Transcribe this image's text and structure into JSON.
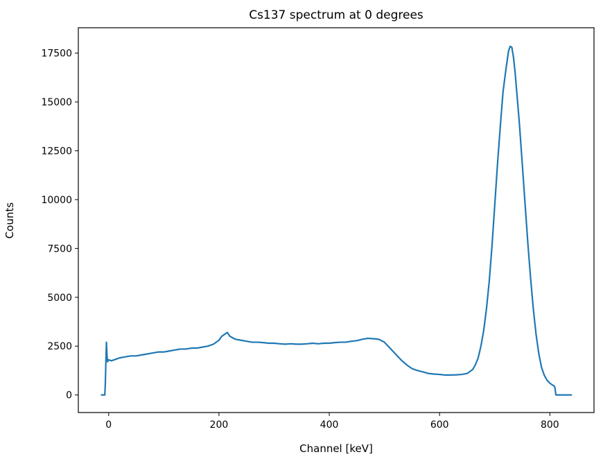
{
  "chart_data": {
    "type": "line",
    "title": "Cs137 spectrum at 0 degrees",
    "xlabel": "Channel [keV]",
    "ylabel": "Counts",
    "xlim": [
      -55,
      880
    ],
    "ylim": [
      -900,
      18800
    ],
    "xticks": [
      0,
      200,
      400,
      600,
      800
    ],
    "xtick_labels": [
      "0",
      "200",
      "400",
      "600",
      "800"
    ],
    "yticks": [
      0,
      2500,
      5000,
      7500,
      10000,
      12500,
      15000,
      17500
    ],
    "ytick_labels": [
      "0",
      "2500",
      "5000",
      "7500",
      "10000",
      "12500",
      "15000",
      "17500"
    ],
    "grid": false,
    "legend": "none",
    "line_color": "#1f77b4",
    "series": [
      {
        "x": [
          -14,
          -8,
          -7,
          -6,
          -5,
          -4,
          -3,
          -2,
          0,
          5,
          10,
          15,
          20,
          30,
          40,
          50,
          60,
          70,
          80,
          90,
          100,
          110,
          120,
          130,
          140,
          150,
          160,
          170,
          180,
          190,
          200,
          205,
          210,
          215,
          220,
          230,
          240,
          250,
          260,
          270,
          280,
          290,
          300,
          310,
          320,
          330,
          340,
          350,
          360,
          370,
          380,
          390,
          400,
          410,
          420,
          430,
          440,
          450,
          460,
          470,
          480,
          490,
          500,
          510,
          520,
          530,
          540,
          550,
          560,
          570,
          580,
          590,
          600,
          610,
          620,
          630,
          640,
          650,
          660,
          665,
          670,
          675,
          680,
          685,
          690,
          695,
          700,
          705,
          710,
          715,
          720,
          722,
          725,
          728,
          731,
          734,
          737,
          740,
          745,
          750,
          755,
          760,
          765,
          770,
          775,
          780,
          785,
          790,
          795,
          800,
          808,
          809,
          811,
          820,
          840
        ],
        "y": [
          0,
          0,
          0,
          600,
          1750,
          2700,
          2000,
          1700,
          1800,
          1750,
          1800,
          1850,
          1900,
          1950,
          2000,
          2000,
          2050,
          2100,
          2150,
          2200,
          2200,
          2250,
          2300,
          2350,
          2350,
          2400,
          2400,
          2450,
          2500,
          2600,
          2800,
          3000,
          3100,
          3200,
          3000,
          2850,
          2800,
          2750,
          2700,
          2700,
          2680,
          2650,
          2650,
          2620,
          2600,
          2620,
          2600,
          2600,
          2620,
          2650,
          2620,
          2650,
          2650,
          2680,
          2700,
          2700,
          2750,
          2780,
          2850,
          2900,
          2880,
          2850,
          2700,
          2400,
          2100,
          1800,
          1550,
          1350,
          1250,
          1180,
          1100,
          1070,
          1050,
          1020,
          1020,
          1030,
          1050,
          1100,
          1300,
          1550,
          1900,
          2500,
          3300,
          4400,
          5800,
          7600,
          9700,
          11800,
          13700,
          15500,
          16600,
          17000,
          17600,
          17850,
          17800,
          17300,
          16500,
          15500,
          13800,
          11800,
          9800,
          7800,
          6000,
          4400,
          3100,
          2100,
          1400,
          1000,
          750,
          600,
          450,
          400,
          0,
          0,
          0
        ]
      }
    ]
  }
}
